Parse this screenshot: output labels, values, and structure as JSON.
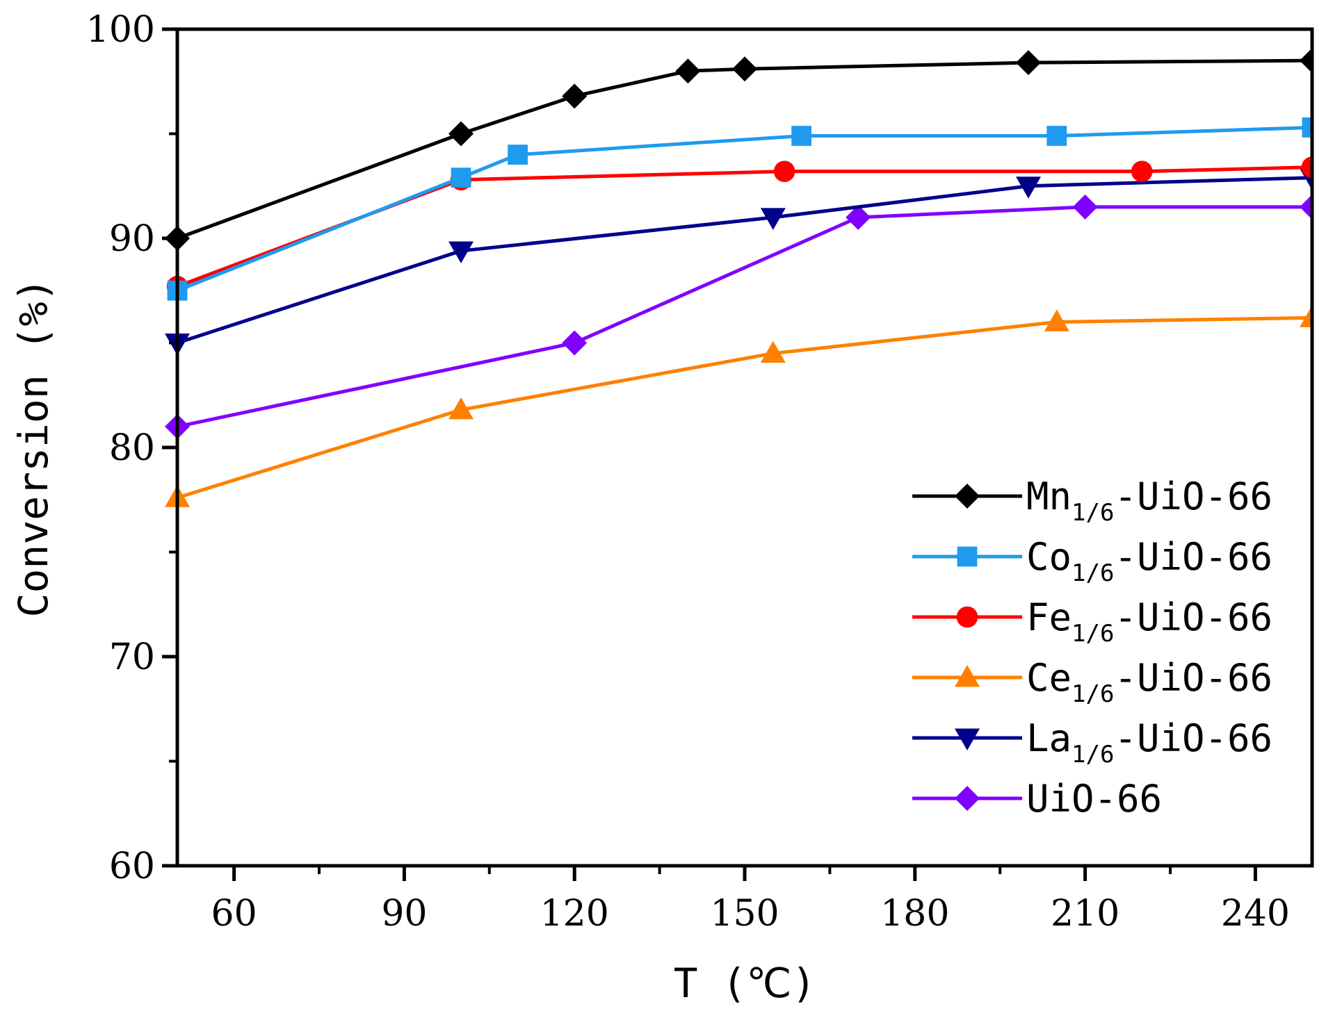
{
  "chart_data": {
    "type": "line",
    "title": "",
    "xlabel": "T (℃)",
    "ylabel": "Conversion (%)",
    "xlim": [
      50,
      250
    ],
    "ylim": [
      60,
      100
    ],
    "xticks": [
      60,
      90,
      120,
      150,
      180,
      210,
      240
    ],
    "yticks": [
      60,
      70,
      80,
      90,
      100
    ],
    "grid": false,
    "legend_position": "bottom-right",
    "series": [
      {
        "name": "Mn1/6-UiO-66",
        "label_main": "Mn",
        "label_sub": "1/6",
        "label_rest": "-UiO-66",
        "color": "#000000",
        "marker": "diamond",
        "x": [
          50,
          100,
          120,
          140,
          150,
          200,
          250
        ],
        "y": [
          90.0,
          95.0,
          96.8,
          98.0,
          98.1,
          98.4,
          98.5
        ]
      },
      {
        "name": "Co1/6-UiO-66",
        "label_main": "Co",
        "label_sub": "1/6",
        "label_rest": "-UiO-66",
        "color": "#1E9BEF",
        "marker": "square",
        "x": [
          50,
          100,
          110,
          160,
          205,
          250
        ],
        "y": [
          87.5,
          92.9,
          94.0,
          94.9,
          94.9,
          95.3
        ]
      },
      {
        "name": "Fe1/6-UiO-66",
        "label_main": "Fe",
        "label_sub": "1/6",
        "label_rest": "-UiO-66",
        "color": "#FF0000",
        "marker": "circle",
        "x": [
          50,
          100,
          157,
          220,
          250
        ],
        "y": [
          87.7,
          92.8,
          93.2,
          93.2,
          93.4
        ]
      },
      {
        "name": "Ce1/6-UiO-66",
        "label_main": "Ce",
        "label_sub": "1/6",
        "label_rest": "-UiO-66",
        "color": "#FF8000",
        "marker": "triangle-up",
        "x": [
          50,
          100,
          155,
          205,
          250
        ],
        "y": [
          77.6,
          81.8,
          84.5,
          86.0,
          86.2
        ]
      },
      {
        "name": "La1/6-UiO-66",
        "label_main": "La",
        "label_sub": "1/6",
        "label_rest": "-UiO-66",
        "color": "#00008B",
        "marker": "triangle-down",
        "x": [
          50,
          100,
          155,
          200,
          250
        ],
        "y": [
          85.0,
          89.4,
          91.0,
          92.5,
          92.9
        ]
      },
      {
        "name": "UiO-66",
        "label_main": "UiO-66",
        "label_sub": "",
        "label_rest": "",
        "color": "#8000FF",
        "marker": "diamond",
        "x": [
          50,
          120,
          170,
          210,
          250
        ],
        "y": [
          81.0,
          85.0,
          91.0,
          91.5,
          91.5
        ]
      }
    ]
  }
}
